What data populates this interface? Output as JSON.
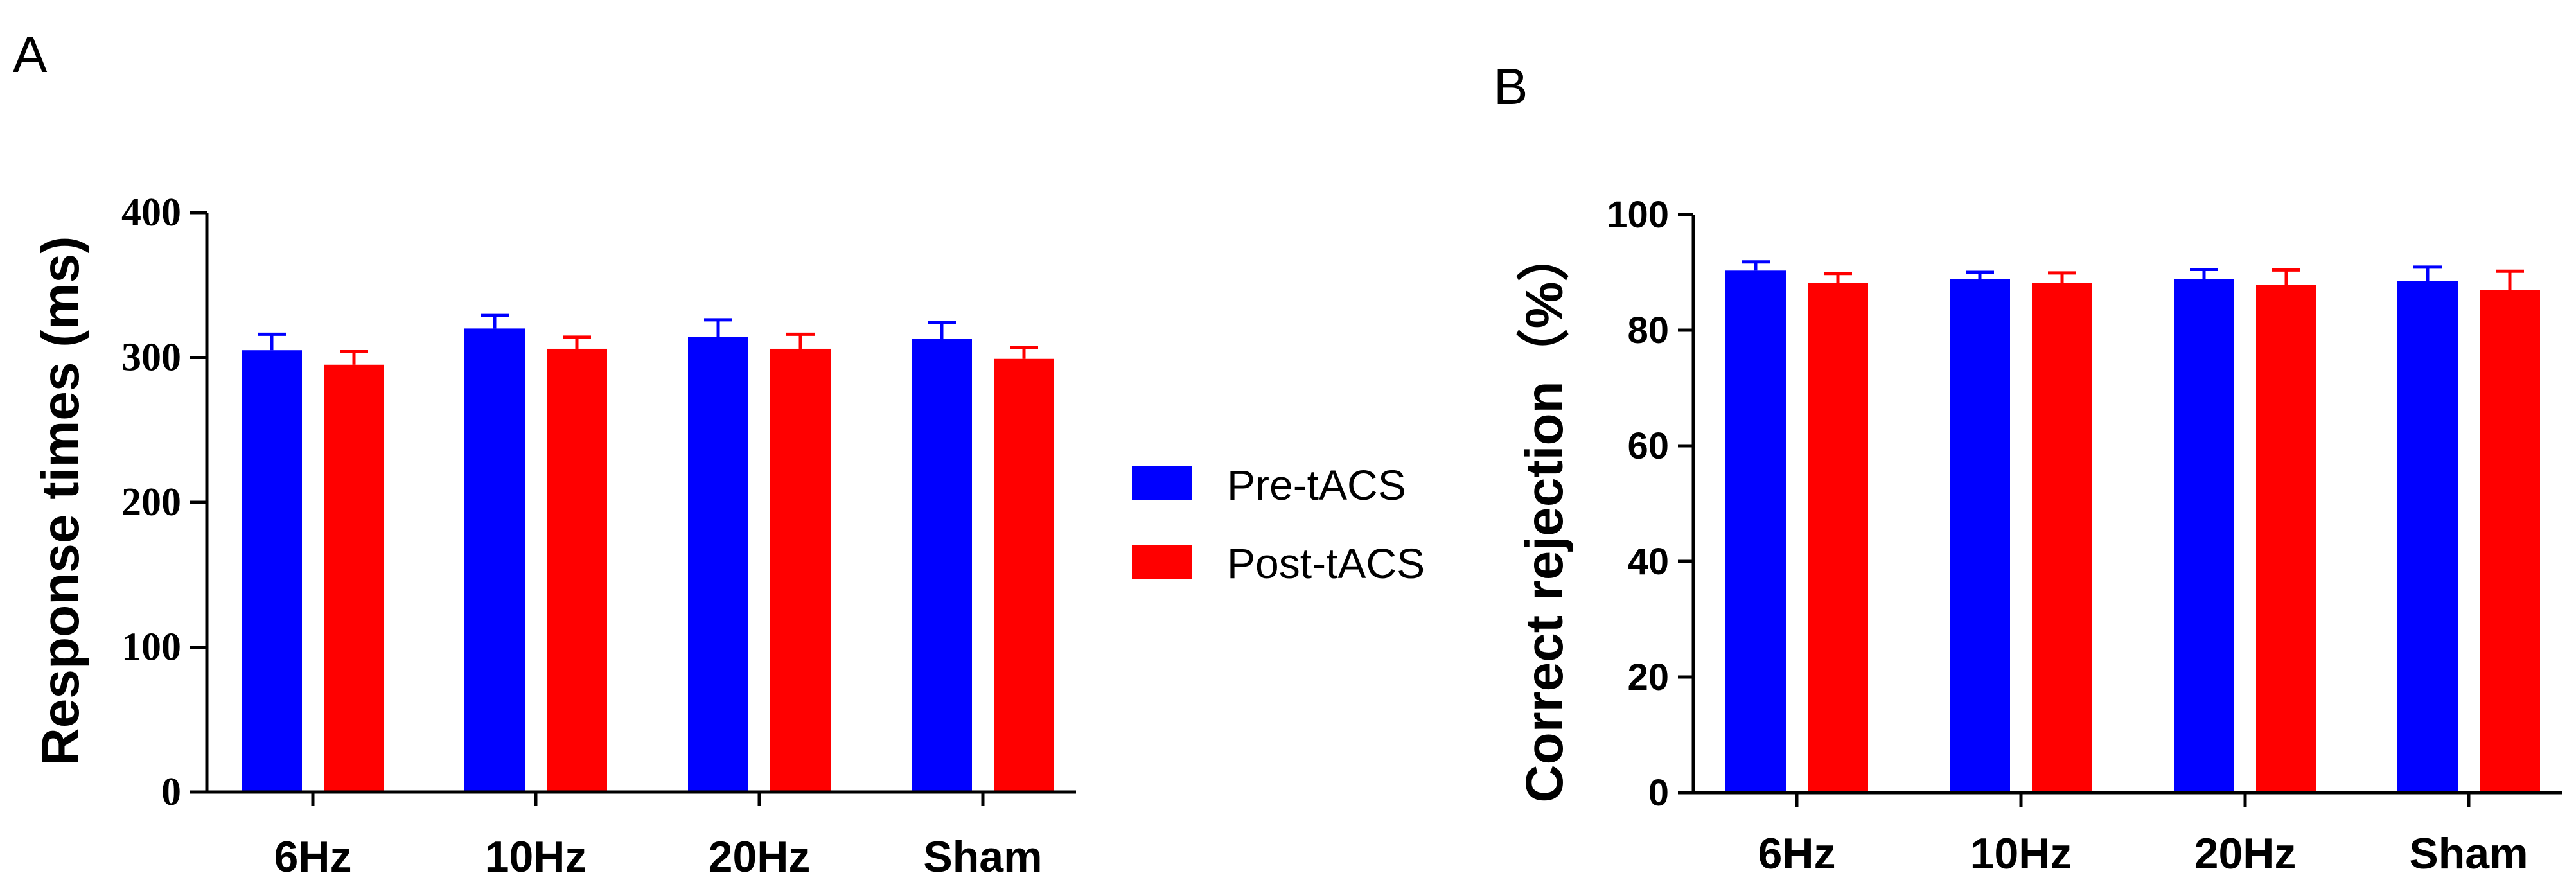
{
  "legend": {
    "entries": [
      {
        "label": "Pre-tACS",
        "color": "#0000FF"
      },
      {
        "label": "Post-tACS",
        "color": "#FF0000"
      }
    ]
  },
  "chart_data": [
    {
      "panel": "A",
      "type": "bar",
      "title": "",
      "xlabel": "",
      "ylabel": "Response times (ms)",
      "categories": [
        "6Hz",
        "10Hz",
        "20Hz",
        "Sham"
      ],
      "ylim": [
        0,
        400
      ],
      "yticks": [
        0,
        100,
        200,
        300,
        400
      ],
      "grid": false,
      "series": [
        {
          "name": "Pre-tACS",
          "color": "#0000FF",
          "values": [
            305,
            320,
            314,
            313
          ],
          "errors": [
            11,
            9,
            12,
            11
          ]
        },
        {
          "name": "Post-tACS",
          "color": "#FF0000",
          "values": [
            295,
            306,
            306,
            299
          ],
          "errors": [
            9,
            8,
            10,
            8
          ]
        }
      ]
    },
    {
      "panel": "B",
      "type": "bar",
      "title": "",
      "xlabel": "",
      "ylabel": "Correct rejection（%）",
      "categories": [
        "6Hz",
        "10Hz",
        "20Hz",
        "Sham"
      ],
      "ylim": [
        0,
        100
      ],
      "yticks": [
        0,
        20,
        40,
        60,
        80,
        100
      ],
      "grid": false,
      "series": [
        {
          "name": "Pre-tACS",
          "color": "#0000FF",
          "values": [
            90.3,
            88.8,
            88.8,
            88.5
          ],
          "errors": [
            1.5,
            1.2,
            1.7,
            2.4
          ]
        },
        {
          "name": "Post-tACS",
          "color": "#FF0000",
          "values": [
            88.2,
            88.2,
            87.8,
            87.0
          ],
          "errors": [
            1.6,
            1.7,
            2.6,
            3.2
          ]
        }
      ]
    }
  ]
}
